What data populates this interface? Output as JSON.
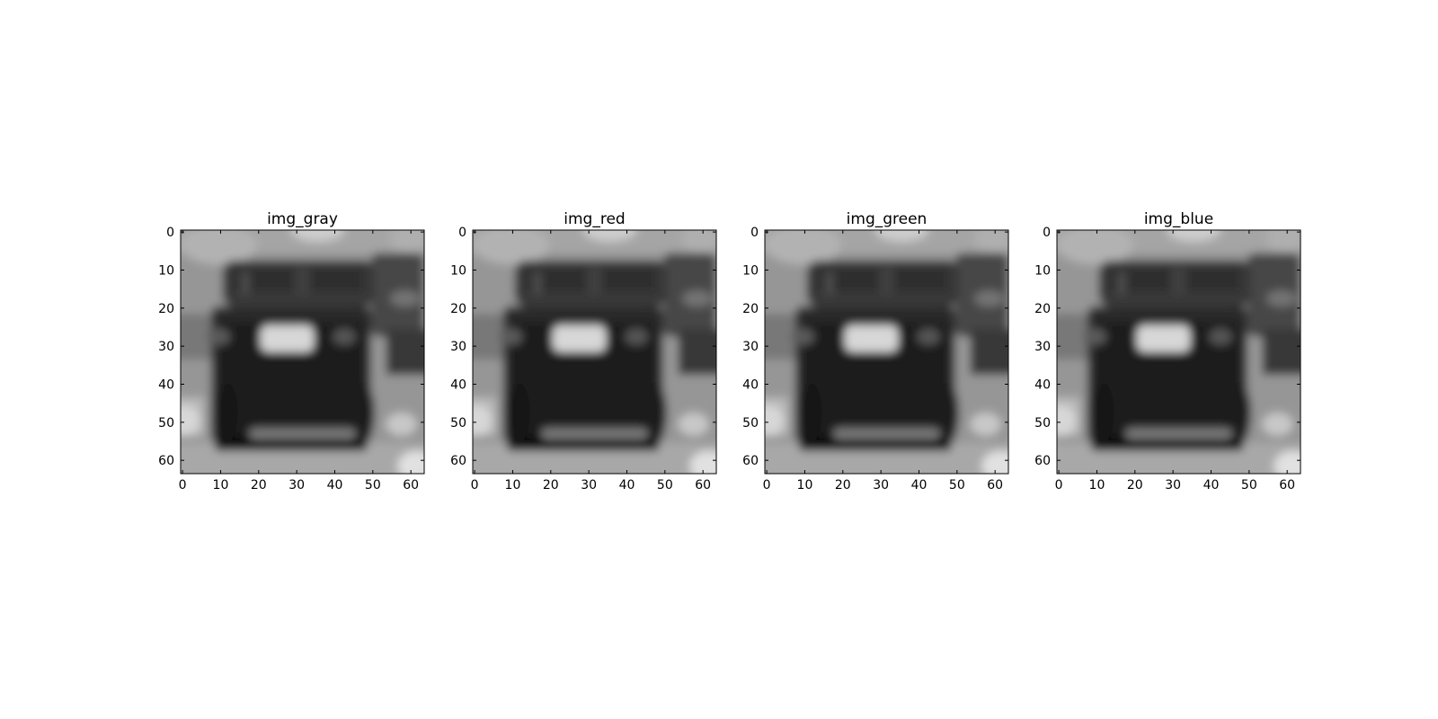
{
  "chart_data": [
    {
      "type": "heatmap",
      "title": "img_gray",
      "colormap": "gray",
      "xlim": [
        0,
        63
      ],
      "ylim": [
        0,
        63
      ],
      "y_inverted": true,
      "xticks": [
        0,
        10,
        20,
        30,
        40,
        50,
        60
      ],
      "yticks": [
        0,
        10,
        20,
        30,
        40,
        50,
        60
      ],
      "xtick_labels": [
        "0",
        "10",
        "20",
        "30",
        "40",
        "50",
        "60"
      ],
      "ytick_labels": [
        "0",
        "10",
        "20",
        "30",
        "40",
        "50",
        "60"
      ],
      "grid": false
    },
    {
      "type": "heatmap",
      "title": "img_red",
      "colormap": "gray",
      "xlim": [
        0,
        63
      ],
      "ylim": [
        0,
        63
      ],
      "y_inverted": true,
      "xticks": [
        0,
        10,
        20,
        30,
        40,
        50,
        60
      ],
      "yticks": [
        0,
        10,
        20,
        30,
        40,
        50,
        60
      ],
      "xtick_labels": [
        "0",
        "10",
        "20",
        "30",
        "40",
        "50",
        "60"
      ],
      "ytick_labels": [
        "0",
        "10",
        "20",
        "30",
        "40",
        "50",
        "60"
      ],
      "grid": false
    },
    {
      "type": "heatmap",
      "title": "img_green",
      "colormap": "gray",
      "xlim": [
        0,
        63
      ],
      "ylim": [
        0,
        63
      ],
      "y_inverted": true,
      "xticks": [
        0,
        10,
        20,
        30,
        40,
        50,
        60
      ],
      "yticks": [
        0,
        10,
        20,
        30,
        40,
        50,
        60
      ],
      "xtick_labels": [
        "0",
        "10",
        "20",
        "30",
        "40",
        "50",
        "60"
      ],
      "ytick_labels": [
        "0",
        "10",
        "20",
        "30",
        "40",
        "50",
        "60"
      ],
      "grid": false
    },
    {
      "type": "heatmap",
      "title": "img_blue",
      "colormap": "gray",
      "xlim": [
        0,
        63
      ],
      "ylim": [
        0,
        63
      ],
      "y_inverted": true,
      "xticks": [
        0,
        10,
        20,
        30,
        40,
        50,
        60
      ],
      "yticks": [
        0,
        10,
        20,
        30,
        40,
        50,
        60
      ],
      "xtick_labels": [
        "0",
        "10",
        "20",
        "30",
        "40",
        "50",
        "60"
      ],
      "ytick_labels": [
        "0",
        "10",
        "20",
        "30",
        "40",
        "50",
        "60"
      ],
      "grid": false
    }
  ]
}
